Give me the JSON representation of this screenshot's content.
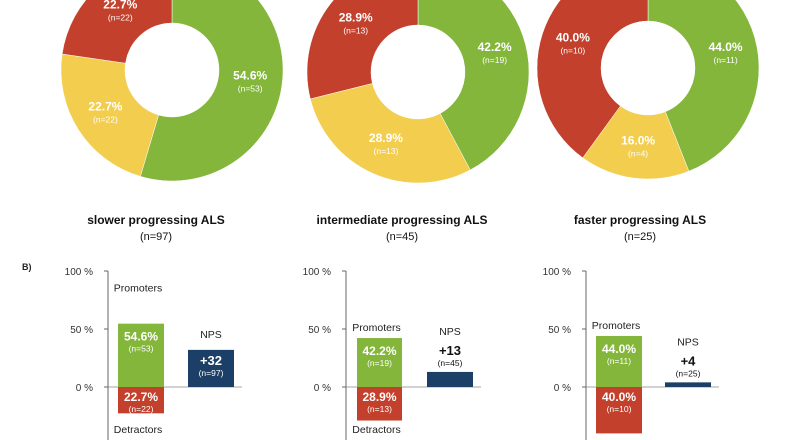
{
  "section_label": "B)",
  "colors": {
    "promoter": "#83b63a",
    "passive": "#f2cd4e",
    "detractor": "#c2402c",
    "nps": "#1b3f66"
  },
  "panels": [
    {
      "title": "slower progressing ALS",
      "n": "(n=97)"
    },
    {
      "title": "intermediate progressing ALS",
      "n": "(n=45)"
    },
    {
      "title": "faster progressing ALS",
      "n": "(n=25)"
    }
  ],
  "legend_labels": {
    "promoters": "Promoters",
    "detractors": "Detractors",
    "nps": "NPS"
  },
  "chart_data": [
    {
      "type": "pie",
      "title": "slower progressing ALS (n=97)",
      "slices": [
        {
          "category": "promoters",
          "value": 54.6,
          "label": "54.6%",
          "count": "(n=53)"
        },
        {
          "category": "passives",
          "value": 22.7,
          "label": "22.7%",
          "count": "(n=22)"
        },
        {
          "category": "detractors",
          "value": 22.7,
          "label": "22.7%",
          "count": "(n=22)"
        }
      ]
    },
    {
      "type": "pie",
      "title": "intermediate progressing ALS (n=45)",
      "slices": [
        {
          "category": "promoters",
          "value": 42.2,
          "label": "42.2%",
          "count": "(n=19)"
        },
        {
          "category": "passives",
          "value": 28.9,
          "label": "28.9%",
          "count": "(n=13)"
        },
        {
          "category": "detractors",
          "value": 28.9,
          "label": "28.9%",
          "count": "(n=13)"
        }
      ]
    },
    {
      "type": "pie",
      "title": "faster progressing ALS (n=25)",
      "slices": [
        {
          "category": "promoters",
          "value": 44.0,
          "label": "44.0%",
          "count": "(n=11)"
        },
        {
          "category": "passives",
          "value": 16.0,
          "label": "16.0%",
          "count": "(n=4)"
        },
        {
          "category": "detractors",
          "value": 40.0,
          "label": "40.0%",
          "count": "(n=10)"
        }
      ]
    },
    {
      "type": "bar",
      "title": "slower progressing ALS",
      "yticks": [
        "100 %",
        "50 %",
        "0 %"
      ],
      "ylim": [
        -50,
        100
      ],
      "promoters": {
        "value": 54.6,
        "label": "54.6%",
        "count": "(n=53)"
      },
      "detractors": {
        "value": 22.7,
        "label": "22.7%",
        "count": "(n=22)"
      },
      "nps": {
        "value": 32,
        "label": "+32",
        "count": "(n=97)"
      }
    },
    {
      "type": "bar",
      "title": "intermediate progressing ALS",
      "yticks": [
        "100 %",
        "50 %",
        "0 %"
      ],
      "ylim": [
        -50,
        100
      ],
      "promoters": {
        "value": 42.2,
        "label": "42.2%",
        "count": "(n=19)"
      },
      "detractors": {
        "value": 28.9,
        "label": "28.9%",
        "count": "(n=13)"
      },
      "nps": {
        "value": 13,
        "label": "+13",
        "count": "(n=45)"
      }
    },
    {
      "type": "bar",
      "title": "faster progressing ALS",
      "yticks": [
        "100 %",
        "50 %",
        "0 %"
      ],
      "ylim": [
        -50,
        100
      ],
      "promoters": {
        "value": 44.0,
        "label": "44.0%",
        "count": "(n=11)"
      },
      "detractors": {
        "value": 40.0,
        "label": "40.0%",
        "count": "(n=10)"
      },
      "nps": {
        "value": 4,
        "label": "+4",
        "count": "(n=25)"
      }
    }
  ]
}
